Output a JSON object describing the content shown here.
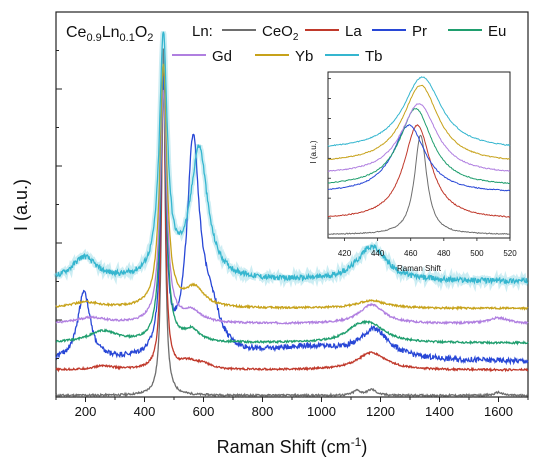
{
  "chart_data": [
    {
      "type": "line",
      "title_parts": {
        "base1": "Ce",
        "sub1": "0.9",
        "base2": "Ln",
        "sub2": "0.1",
        "base3": "O",
        "sub3": "2"
      },
      "legend_heading": "Ln:",
      "xlabel": "Raman Shift (cm",
      "xlabel_sup": "-1",
      "xlabel_end": ")",
      "ylabel": "I (a.u.)",
      "xlim": [
        100,
        1700
      ],
      "ylim": [
        0,
        100
      ],
      "x_ticks": [
        200,
        400,
        600,
        800,
        1000,
        1200,
        1400,
        1600
      ],
      "legend_position": "top",
      "series": [
        {
          "name": "CeO",
          "name_sub": "2",
          "color": "#6e6e6e",
          "baseline": 0.4,
          "peak462": 90,
          "peak462_width": 7,
          "peaks": [
            [
              1120,
              1.2,
              15
            ],
            [
              1170,
              1.5,
              18
            ],
            [
              1600,
              0.8,
              15
            ]
          ]
        },
        {
          "name": "La",
          "color": "#c0392b",
          "baseline": 7,
          "peak462": 77,
          "peak462_width": 8,
          "peaks": [
            [
              260,
              1.0,
              40
            ],
            [
              550,
              2.0,
              35
            ],
            [
              600,
              1.2,
              30
            ],
            [
              1170,
              4.5,
              60
            ]
          ]
        },
        {
          "name": "Pr",
          "color": "#2847d6",
          "baseline": 9,
          "peak462": 70,
          "peak462_width": 10,
          "peaks": [
            [
              195,
              18,
              25
            ],
            [
              565,
              54,
              25
            ],
            [
              620,
              12,
              40
            ],
            [
              950,
              3.5,
              200
            ],
            [
              1180,
              7,
              60
            ]
          ]
        },
        {
          "name": "Eu",
          "color": "#1f9e6e",
          "baseline": 14,
          "peak462": 65,
          "peak462_width": 12,
          "peaks": [
            [
              260,
              3,
              60
            ],
            [
              560,
              3,
              30
            ],
            [
              1120,
              2.5,
              50
            ],
            [
              1170,
              4,
              60
            ]
          ]
        },
        {
          "name": "Gd",
          "color": "#b07fe0",
          "baseline": 19,
          "peak462": 60,
          "peak462_width": 13,
          "peaks": [
            [
              220,
              1.5,
              60
            ],
            [
              560,
              3,
              40
            ],
            [
              1170,
              5,
              50
            ],
            [
              1600,
              1.5,
              40
            ]
          ]
        },
        {
          "name": "Yb",
          "color": "#c7a21a",
          "baseline": 23,
          "peak462": 63,
          "peak462_width": 14,
          "peaks": [
            [
              200,
              1.5,
              60
            ],
            [
              570,
              5,
              40
            ],
            [
              1170,
              2,
              60
            ]
          ]
        },
        {
          "name": "Tb",
          "color": "#35b6cf",
          "baseline": 30,
          "peak462": 62,
          "peak462_width": 16,
          "peaks": [
            [
              195,
              6,
              50
            ],
            [
              585,
              34,
              35
            ],
            [
              1170,
              9,
              60
            ]
          ]
        }
      ]
    },
    {
      "type": "line",
      "role": "inset",
      "xlabel": "Raman Shift",
      "ylabel": "I (a.u.)",
      "xlim": [
        410,
        520
      ],
      "ylim": [
        0,
        100
      ],
      "x_ticks": [
        420,
        440,
        460,
        480,
        500,
        520
      ],
      "series": [
        {
          "name": "CeO",
          "name_sub": "2",
          "color": "#6e6e6e",
          "baseline": 2,
          "peak_x": 466,
          "peak_y": 60,
          "width": 4.5
        },
        {
          "name": "La",
          "color": "#c0392b",
          "baseline": 11,
          "peak_x": 464,
          "peak_y": 57,
          "width": 10
        },
        {
          "name": "Pr",
          "color": "#2847d6",
          "baseline": 27,
          "peak_x": 459,
          "peak_y": 41,
          "width": 12
        },
        {
          "name": "Eu",
          "color": "#1f9e6e",
          "baseline": 31,
          "peak_x": 463,
          "peak_y": 47,
          "width": 12
        },
        {
          "name": "Gd",
          "color": "#b07fe0",
          "baseline": 38,
          "peak_x": 465,
          "peak_y": 43,
          "width": 13
        },
        {
          "name": "Yb",
          "color": "#c7a21a",
          "baseline": 45,
          "peak_x": 466,
          "peak_y": 47,
          "width": 13
        },
        {
          "name": "Tb",
          "color": "#35b6cf",
          "baseline": 53,
          "peak_x": 467,
          "peak_y": 44,
          "width": 14
        }
      ]
    }
  ]
}
